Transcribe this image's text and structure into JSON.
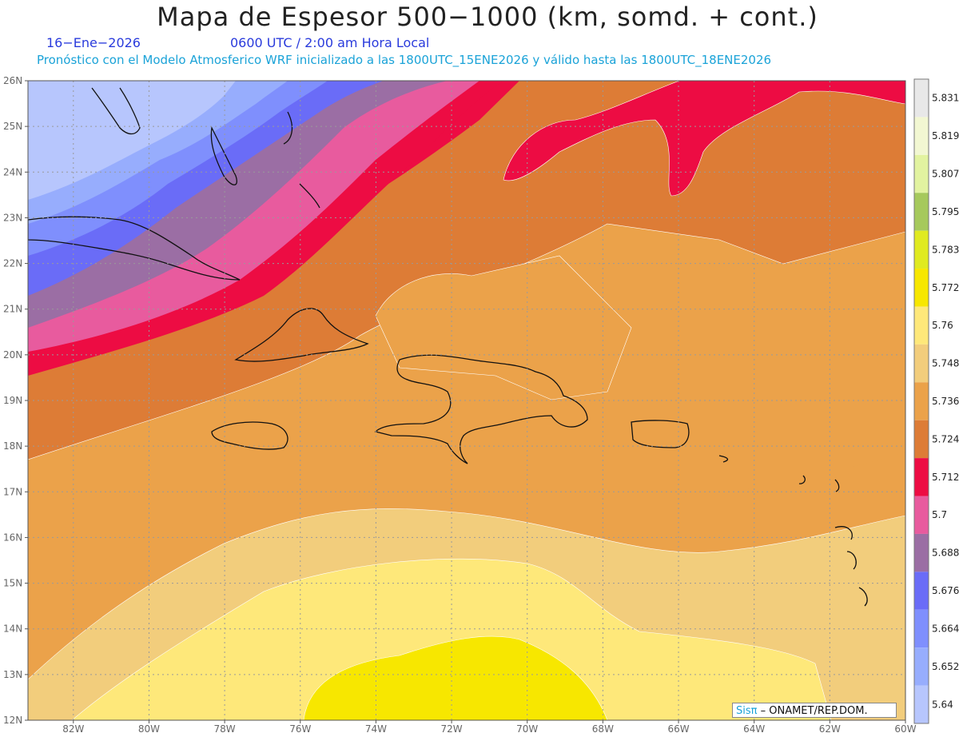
{
  "header": {
    "title": "Mapa de Espesor 500−1000 (km, somd. + cont.)",
    "date": "16−Ene−2026",
    "time": "0600 UTC / 2:00 am Hora Local",
    "forecast": "Pronóstico con el Modelo Atmosferico WRF inicializado a las 1800UTC_15ENE2026 y válido hasta las  1800UTC_18ENE2026"
  },
  "map": {
    "lat_labels": [
      "26N",
      "25N",
      "24N",
      "23N",
      "22N",
      "21N",
      "20N",
      "19N",
      "18N",
      "17N",
      "16N",
      "15N",
      "14N",
      "13N",
      "12N"
    ],
    "lon_labels": [
      "82W",
      "80W",
      "78W",
      "76W",
      "74W",
      "72W",
      "70W",
      "68W",
      "66W",
      "64W",
      "62W",
      "60W"
    ],
    "lat_values": [
      26,
      25,
      24,
      23,
      22,
      21,
      20,
      19,
      18,
      17,
      16,
      15,
      14,
      13,
      12
    ],
    "lon_values": [
      -82,
      -80,
      -78,
      -76,
      -74,
      -72,
      -70,
      -68,
      -66,
      -64,
      -62,
      -60
    ],
    "lon_range": [
      -83.2,
      -60
    ],
    "lat_range": [
      12,
      26
    ]
  },
  "colorbar": {
    "labels": [
      "5.831",
      "5.819",
      "5.807",
      "5.795",
      "5.783",
      "5.772",
      "5.76",
      "5.748",
      "5.736",
      "5.724",
      "5.712",
      "5.7",
      "5.688",
      "5.676",
      "5.664",
      "5.652",
      "5.64"
    ],
    "colors": [
      "#e8e8e8",
      "#f2f7d2",
      "#e2f3a0",
      "#a6c95c",
      "#e0ea20",
      "#f7e700",
      "#fee87a",
      "#f2cd7c",
      "#eba24a",
      "#dd7c36",
      "#ed0c43",
      "#e85b9e",
      "#9b6ea4",
      "#6a6cf7",
      "#7f8ffd",
      "#97adfd",
      "#b7c6fd"
    ]
  },
  "credit": {
    "brand": "Sisπ",
    "text": "– ONAMET/REP.DOM."
  }
}
